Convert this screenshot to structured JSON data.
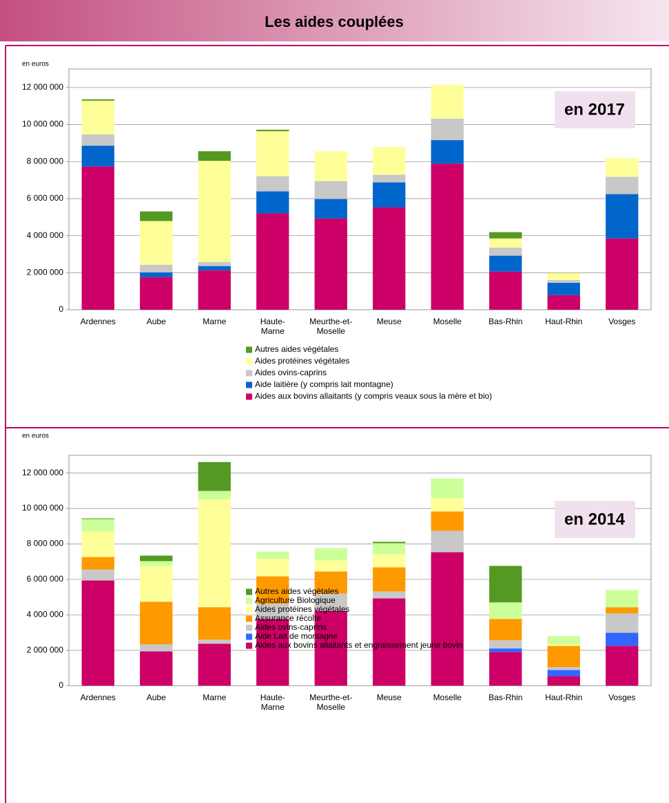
{
  "header": {
    "title": "Les aides couplées"
  },
  "chart_data": [
    {
      "type": "bar",
      "stacked": true,
      "y_label": "en euros",
      "annotation": "en 2017",
      "grid": true,
      "categories": [
        "Ardennes",
        "Aube",
        "Marne",
        "Haute-Marne",
        "Meurthe-et-Moselle",
        "Meuse",
        "Moselle",
        "Bas-Rhin",
        "Haut-Rhin",
        "Vosges"
      ],
      "ylim": [
        0,
        13000000
      ],
      "yticks": [
        0,
        {
          "value": 2000000,
          "label": "2 000 000"
        },
        {
          "value": 4000000,
          "label": "4 000 000"
        },
        {
          "value": 6000000,
          "label": "6 000 000"
        },
        {
          "value": 8000000,
          "label": "8 000 000"
        },
        {
          "value": 10000000,
          "label": "10 000 000"
        },
        {
          "value": 12000000,
          "label": "12 000 000"
        }
      ],
      "series": [
        {
          "name": "Aides aux bovins allaitants (y compris veaux sous la mère et bio)",
          "color": "#cc0066",
          "values": [
            7740000,
            1760000,
            2130000,
            5200000,
            4930000,
            5530000,
            7890000,
            2060000,
            790000,
            3850000
          ]
        },
        {
          "name": "Aide laitière (y compris lait montagne)",
          "color": "#0066cc",
          "values": [
            1120000,
            260000,
            230000,
            1190000,
            1050000,
            1350000,
            1270000,
            860000,
            670000,
            2390000
          ]
        },
        {
          "name": "Aides ovins-caprins",
          "color": "#c8c8c8",
          "values": [
            600000,
            410000,
            220000,
            820000,
            970000,
            410000,
            1160000,
            440000,
            150000,
            940000
          ]
        },
        {
          "name": "Aides protéines végétales",
          "color": "#ffff99",
          "values": [
            1830000,
            2360000,
            5460000,
            2430000,
            1610000,
            1500000,
            1830000,
            490000,
            370000,
            1010000
          ]
        },
        {
          "name": "Autres aides végétales",
          "color": "#559922",
          "values": [
            70000,
            520000,
            520000,
            80000,
            0,
            0,
            0,
            340000,
            0,
            0
          ]
        }
      ]
    },
    {
      "type": "bar",
      "stacked": true,
      "y_label": "en euros",
      "annotation": "en 2014",
      "grid": true,
      "categories": [
        "Ardennes",
        "Aube",
        "Marne",
        "Haute-Marne",
        "Meurthe-et-Moselle",
        "Meuse",
        "Moselle",
        "Bas-Rhin",
        "Haut-Rhin",
        "Vosges"
      ],
      "ylim": [
        0,
        13000000
      ],
      "yticks": [
        0,
        {
          "value": 2000000,
          "label": "2 000 000"
        },
        {
          "value": 4000000,
          "label": "4 000 000"
        },
        {
          "value": 6000000,
          "label": "6 000 000"
        },
        {
          "value": 8000000,
          "label": "8 000 000"
        },
        {
          "value": 10000000,
          "label": "10 000 000"
        },
        {
          "value": 12000000,
          "label": "12 000 000"
        }
      ],
      "series": [
        {
          "name": "Aides aux bovins allaitants et engraissement jeune bovin",
          "color": "#cc0066",
          "values": [
            5940000,
            1940000,
            2370000,
            3770000,
            4230000,
            4930000,
            7530000,
            1900000,
            540000,
            2250000
          ]
        },
        {
          "name": "Aide Lait de montagne",
          "color": "#3366ff",
          "values": [
            0,
            0,
            0,
            0,
            0,
            0,
            0,
            200000,
            350000,
            740000
          ]
        },
        {
          "name": "Aides ovins-caprins",
          "color": "#c8c8c8",
          "values": [
            620000,
            390000,
            230000,
            850000,
            970000,
            390000,
            1210000,
            460000,
            160000,
            1090000
          ]
        },
        {
          "name": "Assurance récolte",
          "color": "#ff9900",
          "values": [
            700000,
            2410000,
            1830000,
            1550000,
            1250000,
            1360000,
            1090000,
            1210000,
            1200000,
            350000
          ]
        },
        {
          "name": "Aides protéines végétales",
          "color": "#ffff99",
          "values": [
            1440000,
            2020000,
            6090000,
            980000,
            620000,
            740000,
            770000,
            0,
            80000,
            0
          ]
        },
        {
          "name": "Agriculture Biologique",
          "color": "#ccff99",
          "values": [
            700000,
            270000,
            470000,
            420000,
            700000,
            620000,
            1090000,
            930000,
            470000,
            970000
          ]
        },
        {
          "name": "Autres aides végétales",
          "color": "#559922",
          "values": [
            40000,
            310000,
            1630000,
            0,
            0,
            80000,
            0,
            2060000,
            0,
            0
          ]
        }
      ]
    }
  ]
}
